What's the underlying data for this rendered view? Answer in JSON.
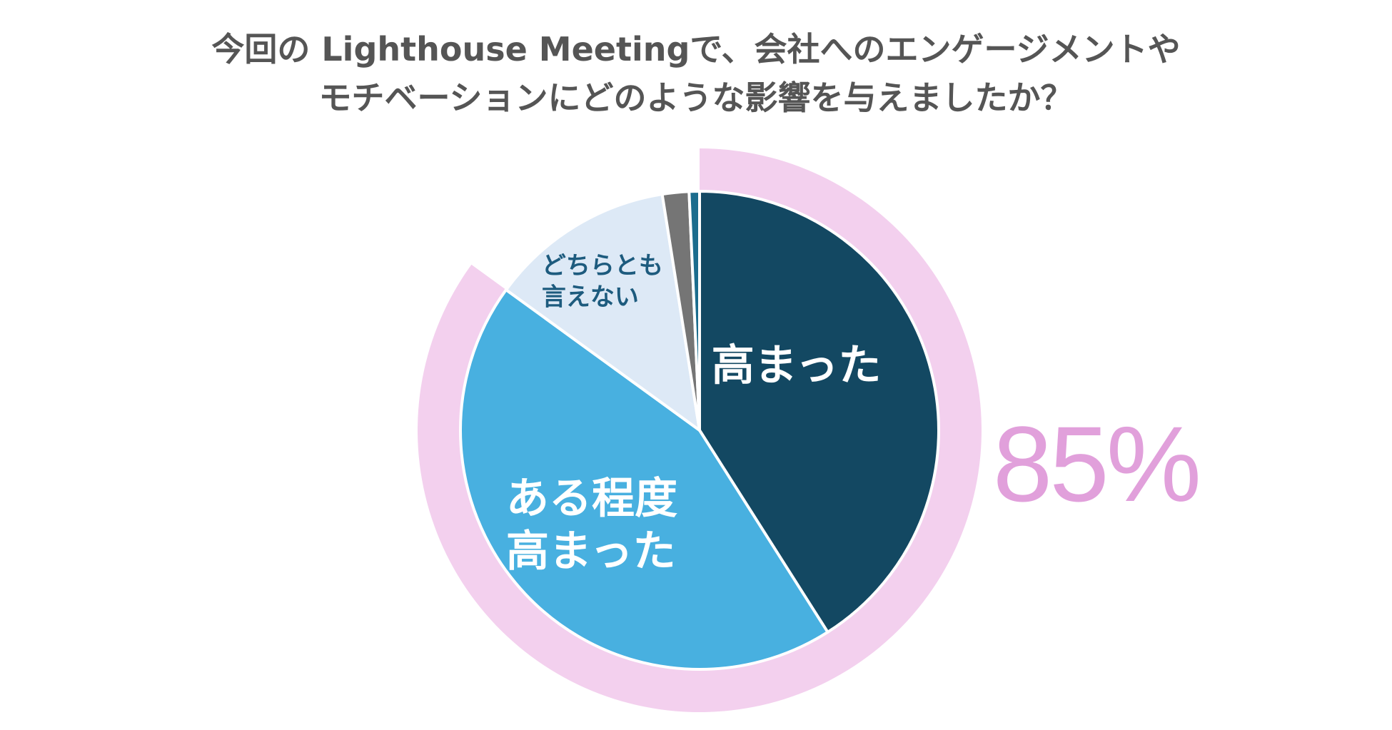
{
  "chart_data": {
    "type": "pie",
    "title_lines": [
      "今回の Lighthouse Meetingで、会社へのエンゲージメントや",
      "モチベーションにどのような影響を与えましたか？"
    ],
    "slices": [
      {
        "label": "高まった",
        "value": 41.0,
        "color": "#134862"
      },
      {
        "label": "ある程度\n高まった",
        "value": 44.0,
        "color": "#48b0e0"
      },
      {
        "label": "どちらとも\n言えない",
        "value": 12.5,
        "color": "#dde9f6"
      },
      {
        "label": "",
        "value": 1.8,
        "color": "#757575"
      },
      {
        "label": "",
        "value": 0.7,
        "color": "#1b6c8d"
      }
    ],
    "highlight": {
      "label": "85%",
      "color": "#e1a0db",
      "ring_color": "#f3d0ee",
      "covers_slices": [
        0,
        1
      ]
    }
  }
}
